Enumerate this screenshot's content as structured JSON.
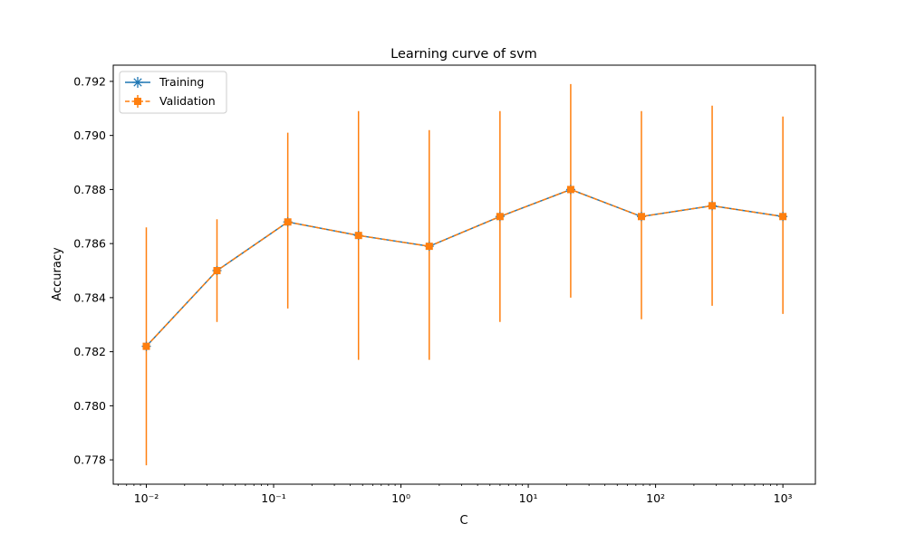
{
  "chart_data": {
    "type": "line",
    "title": "Learning curve of svm",
    "xlabel": "C",
    "ylabel": "Accuracy",
    "xscale": "log",
    "xlim": [
      0.0055,
      1800
    ],
    "ylim": [
      0.7771,
      0.7926
    ],
    "x_ticks": [
      {
        "value": 0.01,
        "label": "10⁻²"
      },
      {
        "value": 0.1,
        "label": "10⁻¹"
      },
      {
        "value": 1,
        "label": "10⁰"
      },
      {
        "value": 10,
        "label": "10¹"
      },
      {
        "value": 100,
        "label": "10²"
      },
      {
        "value": 1000,
        "label": "10³"
      }
    ],
    "y_ticks": [
      "0.778",
      "0.780",
      "0.782",
      "0.784",
      "0.786",
      "0.788",
      "0.790",
      "0.792"
    ],
    "x": [
      0.01,
      0.0359,
      0.1292,
      0.4642,
      1.6681,
      5.9948,
      21.5443,
      77.4264,
      278.2559,
      1000
    ],
    "series": [
      {
        "name": "Training",
        "color": "#1f77b4",
        "marker": "star",
        "linestyle": "solid",
        "values": [
          0.7822,
          0.785,
          0.7868,
          0.7863,
          0.7859,
          0.787,
          0.788,
          0.787,
          0.7874,
          0.787
        ]
      },
      {
        "name": "Validation",
        "color": "#ff7f0e",
        "marker": "square",
        "linestyle": "dashed",
        "values": [
          0.7822,
          0.785,
          0.7868,
          0.7863,
          0.7859,
          0.787,
          0.788,
          0.787,
          0.7874,
          0.787
        ],
        "err_low": [
          0.7778,
          0.7831,
          0.7836,
          0.7817,
          0.7817,
          0.7831,
          0.784,
          0.7832,
          0.7837,
          0.7834
        ],
        "err_high": [
          0.7866,
          0.7869,
          0.7901,
          0.7909,
          0.7902,
          0.7909,
          0.7919,
          0.7909,
          0.7911,
          0.7907
        ]
      }
    ],
    "legend_position": "top-left",
    "grid": false
  }
}
